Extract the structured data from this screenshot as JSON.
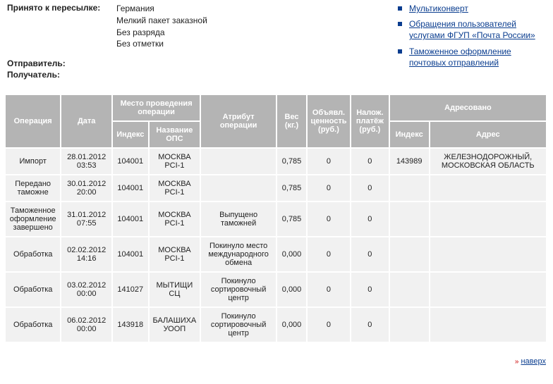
{
  "info": {
    "shipment_label": "Принято к пересылке:",
    "shipment_values": [
      "Германия",
      "Мелкий пакет заказной",
      "Без разряда",
      "Без отметки"
    ],
    "sender_label": "Отправитель:",
    "recipient_label": "Получатель:"
  },
  "sidebar_links": [
    "Мультиконверт",
    "Обращения пользователей услугами ФГУП «Почта России»",
    "Таможенное оформление почтовых отправлений"
  ],
  "table": {
    "headers": {
      "operation": "Операция",
      "date": "Дата",
      "location_group": "Место проведения операции",
      "index": "Индекс",
      "ops_name": "Название ОПС",
      "attribute": "Атрибут операции",
      "weight": "Вес (кг.)",
      "declared_value": "Объявл. ценность (руб.)",
      "cod": "Налож. платёж (руб.)",
      "addressed_group": "Адресовано",
      "addr_index": "Индекс",
      "address": "Адрес"
    },
    "col_widths": {
      "operation": 78,
      "date": 72,
      "index": 50,
      "ops_name": 72,
      "attribute": 108,
      "weight": 42,
      "declared": 60,
      "cod": 54,
      "addr_index": 56,
      "address": 170
    },
    "rows": [
      {
        "op": "Импорт",
        "date": "28.01.2012 03:53",
        "idx": "104001",
        "ops": "МОСКВА PCI-1",
        "attr": "",
        "w": "0,785",
        "dv": "0",
        "cod": "0",
        "aidx": "143989",
        "addr": "ЖЕЛЕЗНОДОРОЖНЫЙ, МОСКОВСКАЯ ОБЛАСТЬ"
      },
      {
        "op": "Передано таможне",
        "date": "30.01.2012 20:00",
        "idx": "104001",
        "ops": "МОСКВА PCI-1",
        "attr": "",
        "w": "0,785",
        "dv": "0",
        "cod": "0",
        "aidx": "",
        "addr": ""
      },
      {
        "op": "Таможенное оформление завершено",
        "date": "31.01.2012 07:55",
        "idx": "104001",
        "ops": "МОСКВА PCI-1",
        "attr": "Выпущено таможней",
        "w": "0,785",
        "dv": "0",
        "cod": "0",
        "aidx": "",
        "addr": ""
      },
      {
        "op": "Обработка",
        "date": "02.02.2012 14:16",
        "idx": "104001",
        "ops": "МОСКВА PCI-1",
        "attr": "Покинуло место международного обмена",
        "w": "0,000",
        "dv": "0",
        "cod": "0",
        "aidx": "",
        "addr": ""
      },
      {
        "op": "Обработка",
        "date": "03.02.2012 00:00",
        "idx": "141027",
        "ops": "МЫТИЩИ СЦ",
        "attr": "Покинуло сортировочный центр",
        "w": "0,000",
        "dv": "0",
        "cod": "0",
        "aidx": "",
        "addr": ""
      },
      {
        "op": "Обработка",
        "date": "06.02.2012 00:00",
        "idx": "143918",
        "ops": "БАЛАШИХА УООП",
        "attr": "Покинуло сортировочный центр",
        "w": "0,000",
        "dv": "0",
        "cod": "0",
        "aidx": "",
        "addr": ""
      }
    ]
  },
  "footer_link": "наверх"
}
